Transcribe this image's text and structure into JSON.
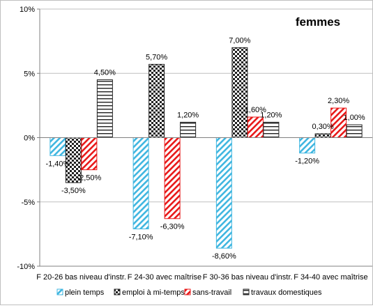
{
  "chart_data": {
    "type": "bar",
    "title": "femmes",
    "xlabel": "",
    "ylabel": "",
    "ylim": [
      -10,
      10
    ],
    "yticks": [
      10,
      5,
      0,
      -5,
      -10
    ],
    "ytick_labels": [
      "10%",
      "5%",
      "0%",
      "-5%",
      "-10%"
    ],
    "grid": true,
    "legend_position": "bottom",
    "categories": [
      "F 20-26 bas niveau d'instr.",
      "F 24-30 avec maîtrise",
      "F 30-36 bas niveau d'instr.",
      "F 34-40 avec maîtrise"
    ],
    "series": [
      {
        "name": "plein temps",
        "values": [
          -1.4,
          -7.1,
          -8.6,
          -1.2
        ],
        "labels": [
          "-1,40%",
          "-7,10%",
          "-8,60%",
          "-1,20%"
        ],
        "color": "#3fb6e0",
        "pattern": "diagonal"
      },
      {
        "name": "emploi à mi-temps",
        "values": [
          -3.5,
          5.7,
          7.0,
          0.3
        ],
        "labels": [
          "-3,50%",
          "5,70%",
          "7,00%",
          "0,30%"
        ],
        "color": "#222222",
        "pattern": "checker"
      },
      {
        "name": "sans-travail",
        "values": [
          -2.5,
          -6.3,
          1.6,
          2.3
        ],
        "labels": [
          "-2,50%",
          "-6,30%",
          "1,60%",
          "2,30%"
        ],
        "color": "#e81818",
        "pattern": "diagonal"
      },
      {
        "name": "travaux domestiques",
        "values": [
          4.5,
          1.2,
          1.2,
          1.0
        ],
        "labels": [
          "4,50%",
          "1,20%",
          "1,20%",
          "1,00%"
        ],
        "color": "#222222",
        "pattern": "horizontal"
      }
    ]
  }
}
